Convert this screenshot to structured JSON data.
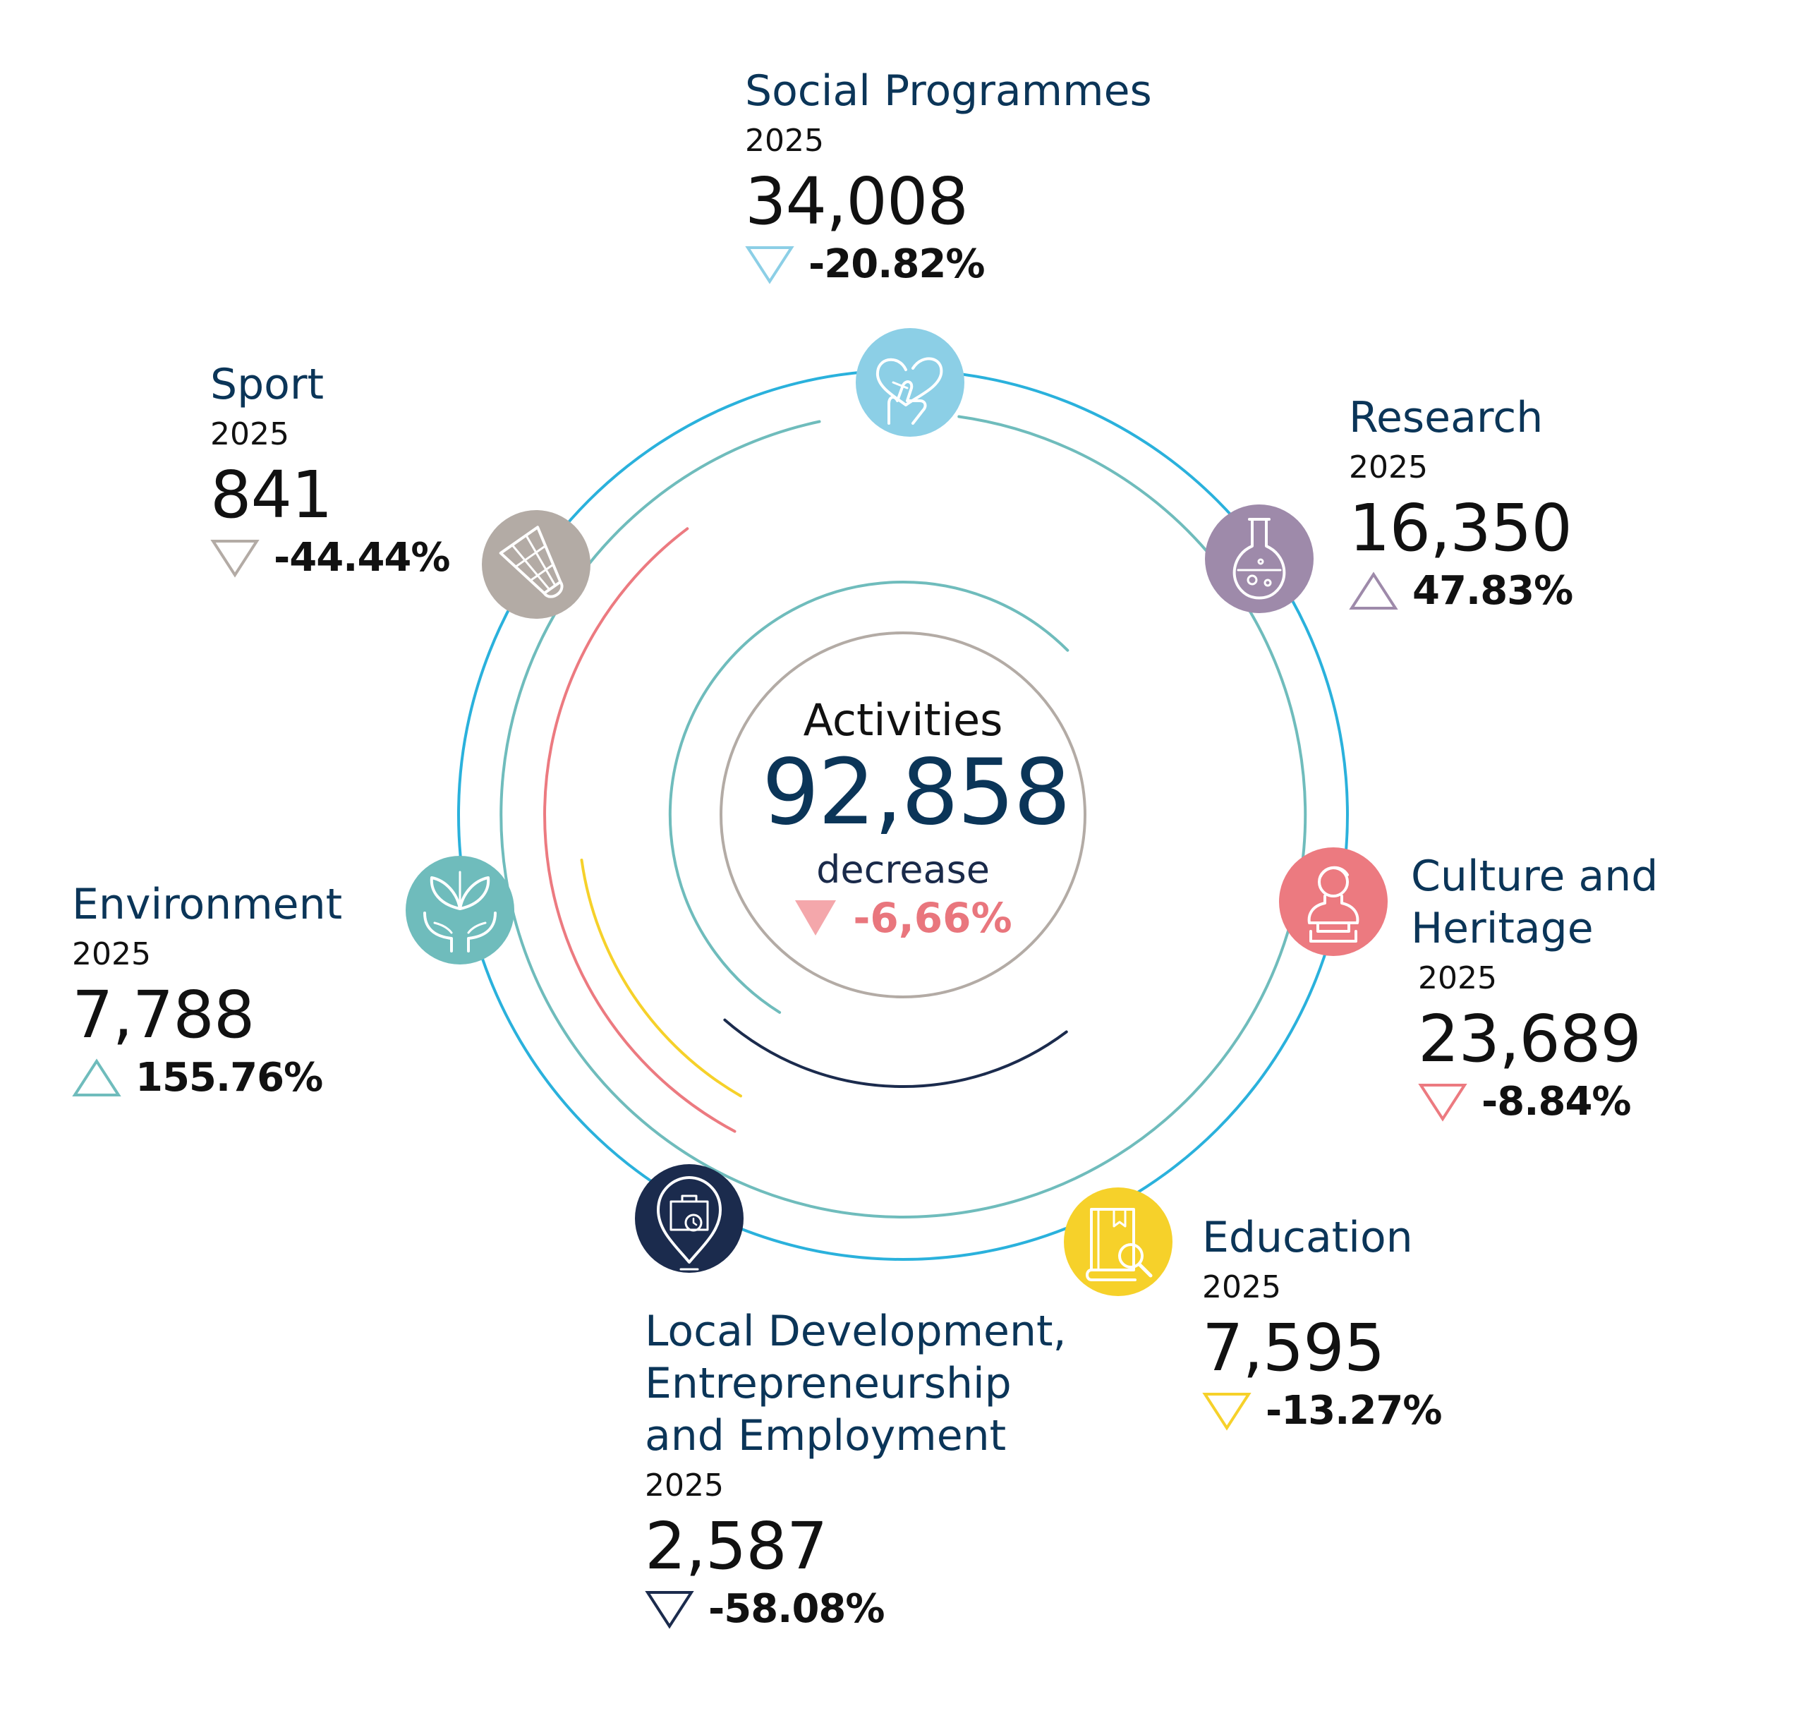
{
  "center": {
    "label": "Activities",
    "total": "92,858",
    "direction_label": "decrease",
    "change": "-6,66%",
    "direction": "down",
    "color": "#f4a7ab"
  },
  "chart_data": {
    "type": "radial",
    "total": 92858,
    "total_change_pct": -6.66,
    "categories": [
      {
        "name": "Social Programmes",
        "year": "2025",
        "value_label": "34,008",
        "value": 34008,
        "change_label": "-20.82%",
        "change_pct": -20.82,
        "direction": "down",
        "color": "#8ccfe6",
        "icon": "pointing-hand-heart-icon"
      },
      {
        "name": "Research",
        "year": "2025",
        "value_label": "16,350",
        "value": 16350,
        "change_label": "47.83%",
        "change_pct": 47.83,
        "direction": "up",
        "color": "#9e8aaa",
        "icon": "flask-icon"
      },
      {
        "name": "Culture and\nHeritage",
        "year": "2025",
        "value_label": "23,689",
        "value": 23689,
        "change_label": "-8.84%",
        "change_pct": -8.84,
        "direction": "down",
        "color": "#ec7a80",
        "icon": "bust-statue-icon"
      },
      {
        "name": "Education",
        "year": "2025",
        "value_label": "7,595",
        "value": 7595,
        "change_label": "-13.27%",
        "change_pct": -13.27,
        "direction": "down",
        "color": "#f6d12a",
        "icon": "book-magnifier-icon"
      },
      {
        "name": "Local Development,\nEntrepreneurship\nand Employment",
        "year": "2025",
        "value_label": "2,587",
        "value": 2587,
        "change_label": "-58.08%",
        "change_pct": -58.08,
        "direction": "down",
        "color": "#1b2b4d",
        "icon": "briefcase-location-pin-icon"
      },
      {
        "name": "Environment",
        "year": "2025",
        "value_label": "7,788",
        "value": 7788,
        "change_label": "155.76%",
        "change_pct": 155.76,
        "direction": "up",
        "color": "#6fbcbc",
        "icon": "hands-leaves-icon"
      },
      {
        "name": "Sport",
        "year": "2025",
        "value_label": "841",
        "value": 841,
        "change_label": "-44.44%",
        "change_pct": -44.44,
        "direction": "down",
        "color": "#b3aba5",
        "icon": "shuttlecock-icon"
      }
    ]
  }
}
